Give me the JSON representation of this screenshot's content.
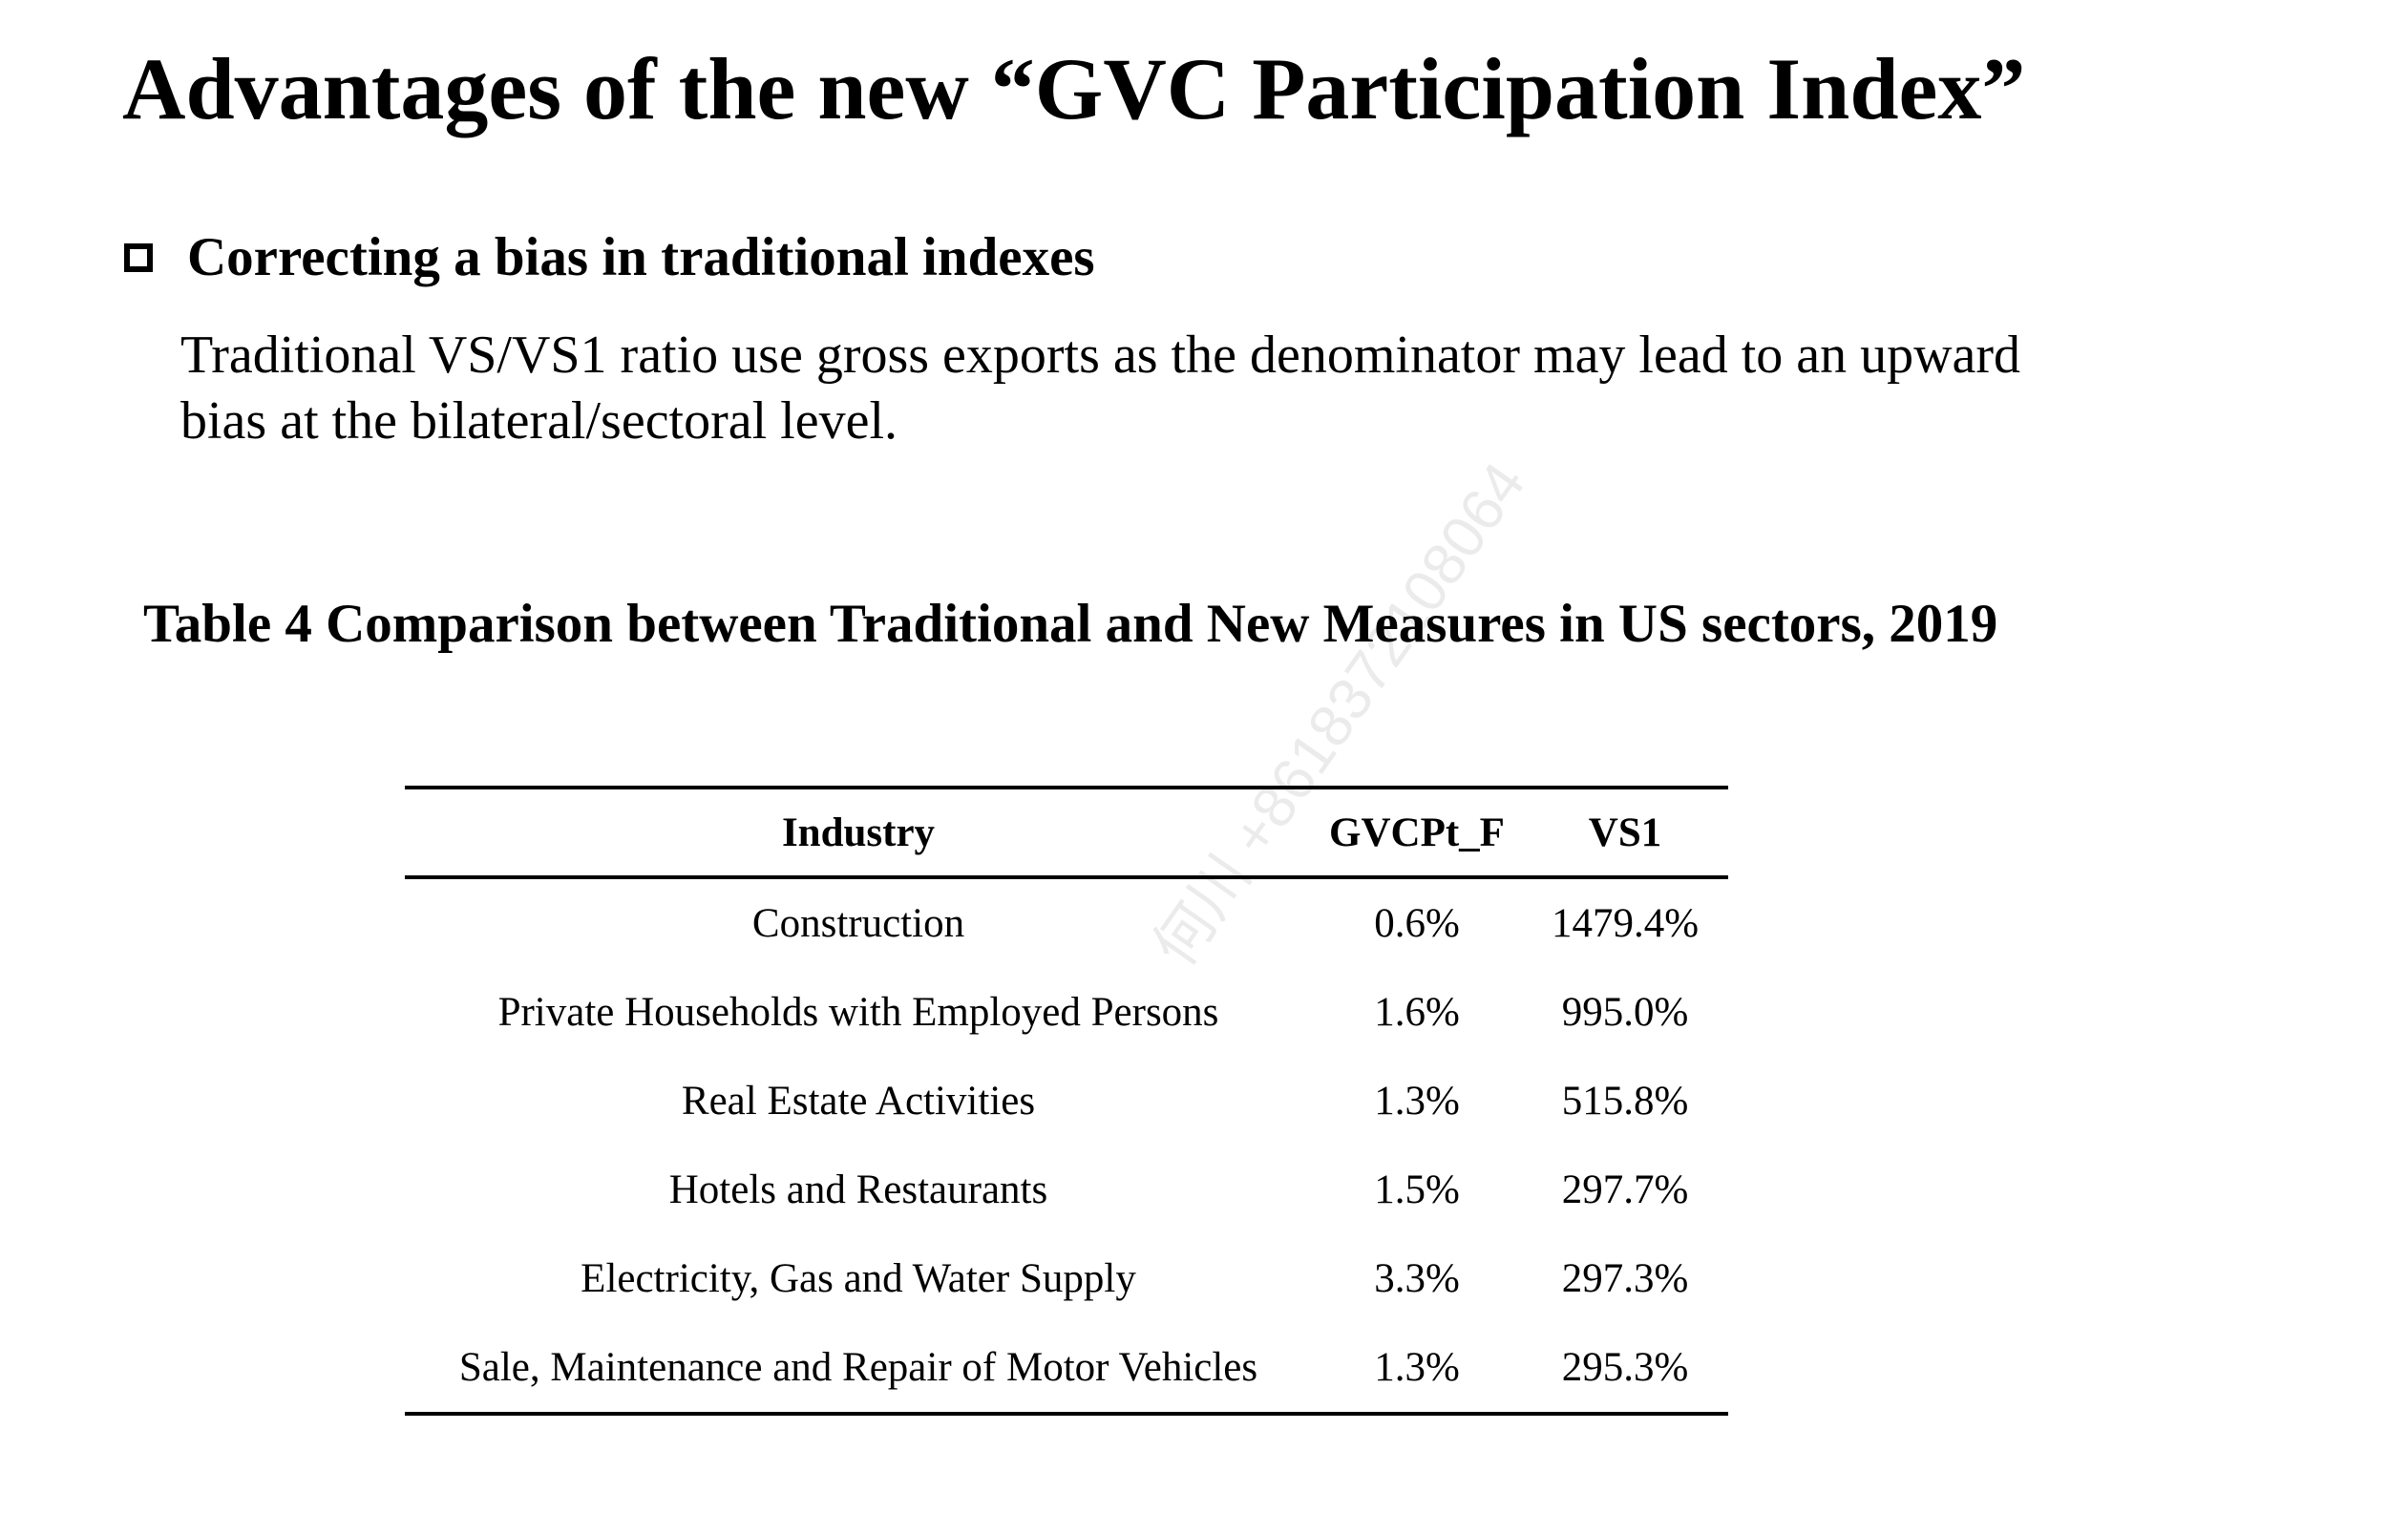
{
  "slide": {
    "title": "Advantages of the new “GVC Participation Index”",
    "bullet_heading": "Correcting a bias in traditional indexes",
    "body_text": "Traditional VS/VS1 ratio use gross exports as the denominator may lead to an upward bias at the bilateral/sectoral level.",
    "table_caption": "Table 4 Comparison between Traditional and New Measures in US sectors, 2019",
    "watermark": "何川 +8618372108064"
  },
  "table": {
    "headers": [
      "Industry",
      "GVCPt_F",
      "VS1"
    ],
    "rows": [
      [
        "Construction",
        "0.6%",
        "1479.4%"
      ],
      [
        "Private Households with Employed Persons",
        "1.6%",
        "995.0%"
      ],
      [
        "Real Estate Activities",
        "1.3%",
        "515.8%"
      ],
      [
        "Hotels and Restaurants",
        "1.5%",
        "297.7%"
      ],
      [
        "Electricity, Gas and Water Supply",
        "3.3%",
        "297.3%"
      ],
      [
        "Sale, Maintenance and Repair of Motor Vehicles",
        "1.3%",
        "295.3%"
      ]
    ]
  }
}
